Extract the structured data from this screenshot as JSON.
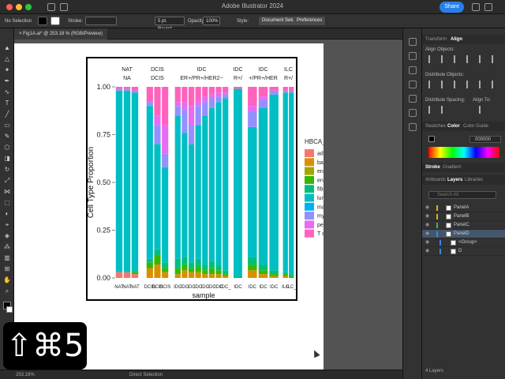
{
  "app": {
    "title": "Adobe Illustrator 2024",
    "share_label": "Share"
  },
  "control_bar": {
    "selection": "No Selection",
    "stroke_label": "Stroke:",
    "brush": "5 pt. Round",
    "opacity_label": "Opacity:",
    "opacity_value": "100%",
    "style_label": "Style:",
    "document_setup": "Document Setup",
    "preferences": "Preferences"
  },
  "document": {
    "tab_label": "Fig1A.ai* @ 253.18 % (RGB/Preview)"
  },
  "status_bar": {
    "zoom": "253.18%",
    "tool": "Direct Selection",
    "layers_count": "4 Layers"
  },
  "panels": {
    "transform_tab": "Transform",
    "align_tab": "Align",
    "align_objects": "Align Objects:",
    "distribute_objects": "Distribute Objects:",
    "distribute_spacing": "Distribute Spacing:",
    "align_to": "Align To:",
    "swatches_tab": "Swatches",
    "color_tab": "Color",
    "color_guide_tab": "Color Guide",
    "hex_value": "000000",
    "stroke_tab": "Stroke",
    "gradient_tab": "Gradient",
    "artboards_tab": "Artboards",
    "layers_tab": "Layers",
    "libraries_tab": "Libraries",
    "search_placeholder": "Search All",
    "layers": [
      {
        "name": "PanelA",
        "color": "#e0b020",
        "selected": false
      },
      {
        "name": "PanelB",
        "color": "#e0b020",
        "selected": false
      },
      {
        "name": "PanelC",
        "color": "#4caf50",
        "selected": false
      },
      {
        "name": "PanelD",
        "color": "#3b82f6",
        "selected": true
      },
      {
        "name": "<Group>",
        "color": "#3b82f6",
        "selected": false
      },
      {
        "name": "D",
        "color": "#3b82f6",
        "selected": false
      }
    ]
  },
  "shortcut_overlay": "⇧⌘5",
  "chart_data": {
    "type": "bar",
    "stacked": true,
    "xlabel": "sample",
    "ylabel": "Cell Type Proportion",
    "ylim": [
      0,
      1
    ],
    "yticks": [
      "0.00",
      "0.25",
      "0.50",
      "0.75",
      "1.00"
    ],
    "facets": [
      {
        "top": "NAT",
        "sub": "NA"
      },
      {
        "top": "DCIS",
        "sub": "DCIS"
      },
      {
        "top": "IDC",
        "sub": "ER+/PR+/HER2−"
      },
      {
        "top": "IDC",
        "sub": "R+/"
      },
      {
        "top": "IDC",
        "sub": "+/PR+/HER"
      },
      {
        "top": "ILC",
        "sub": "R+/"
      }
    ],
    "x_tick_labels": [
      "NAT",
      "NAT",
      "NAT",
      "DCIS",
      "DCIS",
      "DCIS",
      "IDC",
      "IDC",
      "IDC",
      "IDC",
      "IDC",
      "IDC",
      "IDC",
      "IDC_",
      "IDC",
      "IDC",
      "IDC",
      "IDC",
      "ILC",
      "ILC_"
    ],
    "legend_title": "HBCA_predicted.id",
    "legend_placement": "right",
    "legend": [
      {
        "name": "adipocyte of breast",
        "color": "#f8766d"
      },
      {
        "name": "basal cell",
        "color": "#d89000"
      },
      {
        "name": "endothelial cell of lymphatic v",
        "color": "#a3a500"
      },
      {
        "name": "endothelial cell of vascular tr",
        "color": "#39b600"
      },
      {
        "name": "fibroblast",
        "color": "#00bf7d"
      },
      {
        "name": "luminal epithelial cell of mam",
        "color": "#00bfc4"
      },
      {
        "name": "mast cell",
        "color": "#00b0f6"
      },
      {
        "name": "myeloid cell",
        "color": "#9590ff"
      },
      {
        "name": "pericyte",
        "color": "#e76bf3"
      },
      {
        "name": "T cell",
        "color": "#ff62bc"
      }
    ],
    "samples": [
      [
        0.03,
        0.0,
        0.0,
        0.0,
        0.0,
        0.95,
        0.0,
        0.01,
        0.0,
        0.01
      ],
      [
        0.03,
        0.0,
        0.0,
        0.0,
        0.0,
        0.95,
        0.0,
        0.01,
        0.0,
        0.01
      ],
      [
        0.02,
        0.0,
        0.0,
        0.01,
        0.01,
        0.93,
        0.0,
        0.01,
        0.0,
        0.02
      ],
      [
        0.0,
        0.05,
        0.0,
        0.03,
        0.02,
        0.8,
        0.0,
        0.02,
        0.0,
        0.08
      ],
      [
        0.0,
        0.07,
        0.0,
        0.05,
        0.03,
        0.55,
        0.0,
        0.1,
        0.05,
        0.15
      ],
      [
        0.0,
        0.03,
        0.0,
        0.02,
        0.03,
        0.5,
        0.0,
        0.07,
        0.15,
        0.2
      ],
      [
        0.0,
        0.02,
        0.0,
        0.03,
        0.05,
        0.75,
        0.0,
        0.05,
        0.02,
        0.08
      ],
      [
        0.0,
        0.04,
        0.0,
        0.03,
        0.04,
        0.65,
        0.0,
        0.12,
        0.04,
        0.08
      ],
      [
        0.0,
        0.03,
        0.0,
        0.02,
        0.03,
        0.62,
        0.0,
        0.1,
        0.1,
        0.1
      ],
      [
        0.0,
        0.03,
        0.0,
        0.03,
        0.04,
        0.7,
        0.0,
        0.1,
        0.03,
        0.07
      ],
      [
        0.0,
        0.02,
        0.0,
        0.02,
        0.03,
        0.78,
        0.0,
        0.07,
        0.03,
        0.05
      ],
      [
        0.0,
        0.02,
        0.0,
        0.03,
        0.04,
        0.8,
        0.0,
        0.05,
        0.02,
        0.04
      ],
      [
        0.0,
        0.02,
        0.0,
        0.02,
        0.03,
        0.85,
        0.0,
        0.03,
        0.02,
        0.03
      ],
      [
        0.0,
        0.01,
        0.0,
        0.01,
        0.02,
        0.9,
        0.0,
        0.02,
        0.01,
        0.03
      ],
      [
        0.0,
        0.0,
        0.0,
        0.0,
        0.01,
        0.98,
        0.0,
        0.0,
        0.0,
        0.01
      ],
      [
        0.0,
        0.04,
        0.0,
        0.03,
        0.04,
        0.68,
        0.0,
        0.08,
        0.03,
        0.1
      ],
      [
        0.0,
        0.02,
        0.0,
        0.02,
        0.03,
        0.82,
        0.0,
        0.04,
        0.02,
        0.05
      ],
      [
        0.0,
        0.01,
        0.0,
        0.01,
        0.02,
        0.92,
        0.0,
        0.02,
        0.0,
        0.02
      ],
      [
        0.0,
        0.01,
        0.0,
        0.01,
        0.01,
        0.94,
        0.0,
        0.01,
        0.0,
        0.02
      ],
      [
        0.0,
        0.0,
        0.0,
        0.01,
        0.01,
        0.95,
        0.0,
        0.01,
        0.0,
        0.02
      ]
    ]
  }
}
